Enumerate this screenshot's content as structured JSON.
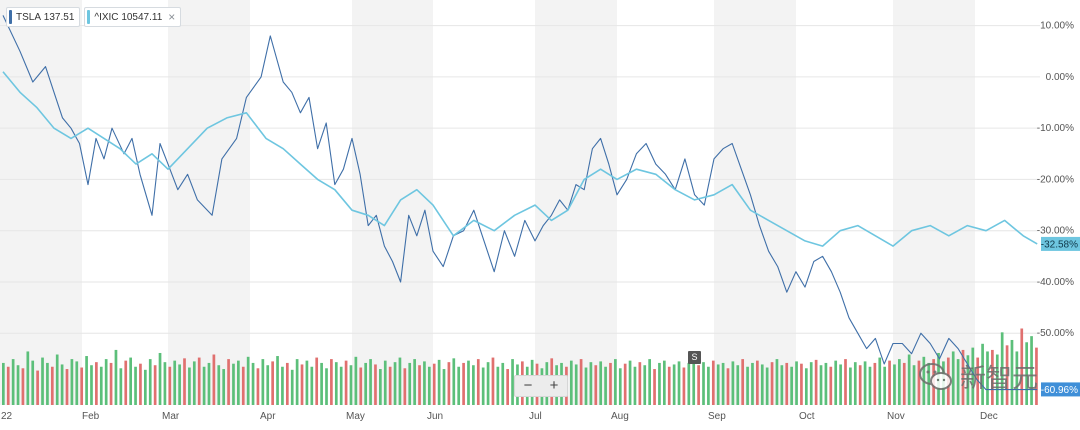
{
  "chart_data": {
    "type": "line",
    "x_labels": [
      "22",
      "Feb",
      "Mar",
      "Apr",
      "May",
      "Jun",
      "Jul",
      "Aug",
      "Sep",
      "Oct",
      "Nov",
      "Dec"
    ],
    "y_ticks": [
      "10.00%",
      "0.00%",
      "-10.00%",
      "-20.00%",
      "-30.00%",
      "-40.00%",
      "-50.00%"
    ],
    "ylim": [
      -64,
      15
    ],
    "grid": true,
    "legend_position": "top-left",
    "series": [
      {
        "name": "TSLA",
        "legend_value": "137.51",
        "color": "#3f6fa8",
        "last_label": "-60.96%",
        "x": [
          0,
          0.2,
          0.35,
          0.5,
          0.6,
          0.7,
          0.8,
          0.9,
          1.0,
          1.1,
          1.2,
          1.3,
          1.45,
          1.55,
          1.65,
          1.8,
          1.9,
          2.0,
          2.1,
          2.2,
          2.3,
          2.45,
          2.55,
          2.7,
          2.8,
          2.95,
          3.05,
          3.2,
          3.3,
          3.4,
          3.5,
          3.6,
          3.7,
          3.8,
          3.9,
          4.0,
          4.1,
          4.2,
          4.3,
          4.4,
          4.5,
          4.6,
          4.7,
          4.8,
          4.9,
          5.0,
          5.1,
          5.2,
          5.3,
          5.4,
          5.5,
          5.6,
          5.7,
          5.8,
          5.9,
          6.0,
          6.1,
          6.2,
          6.3,
          6.4,
          6.5,
          6.6,
          6.7,
          6.8,
          6.9,
          7.0,
          7.1,
          7.2,
          7.3,
          7.4,
          7.5,
          7.6,
          7.7,
          7.8,
          7.9,
          8.0,
          8.1,
          8.2,
          8.3,
          8.4,
          8.5,
          8.6,
          8.7,
          8.8,
          8.9,
          9.0,
          9.1,
          9.2,
          9.3,
          9.4,
          9.5,
          9.6,
          9.7,
          9.8,
          9.9,
          10.0,
          10.1,
          10.2,
          10.3,
          10.4,
          10.5,
          10.6,
          10.7,
          10.8,
          10.9,
          11.0,
          11.1,
          11.2,
          11.3,
          11.4,
          11.55
        ],
        "y": [
          12,
          5,
          -1,
          2,
          -3,
          -8,
          -10,
          -13,
          -21,
          -12,
          -16,
          -10,
          -15,
          -12,
          -19,
          -27,
          -13,
          -17,
          -22,
          -19,
          -24,
          -27,
          -16,
          -12,
          -4,
          0,
          8,
          -1,
          -3,
          -7,
          -4,
          -14,
          -9,
          -21,
          -18,
          -12,
          -19,
          -29,
          -27,
          -33,
          -36,
          -40,
          -27,
          -31,
          -26,
          -34,
          -37,
          -31,
          -30,
          -26,
          -32,
          -38,
          -30,
          -35,
          -28,
          -32,
          -29,
          -27,
          -24,
          -26,
          -21,
          -22,
          -14,
          -12,
          -17,
          -23,
          -20,
          -15,
          -13,
          -17,
          -19,
          -22,
          -16,
          -23,
          -25,
          -16,
          -14,
          -13,
          -18,
          -23,
          -29,
          -34,
          -37,
          -42,
          -38,
          -41,
          -36,
          -35,
          -38,
          -42,
          -47,
          -50,
          -53,
          -51,
          -56,
          -52,
          -52,
          -54,
          -50,
          -52,
          -55,
          -51,
          -53,
          -56,
          -59,
          -61,
          -61,
          -61,
          -61,
          -61,
          -61
        ],
        "y_actual": [
          12,
          5,
          -1,
          2,
          -3,
          -8,
          -10,
          -13,
          -21,
          -12,
          -16,
          -10,
          -15,
          -12,
          -19,
          -27,
          -13,
          -17,
          -22,
          -19,
          -24,
          -27,
          -16,
          -12,
          -4,
          0,
          8,
          -1,
          -3,
          -7,
          -4,
          -14,
          -9,
          -21,
          -18,
          -12,
          -19,
          -29,
          -27,
          -33,
          -36,
          -40,
          -27,
          -31,
          -26,
          -34,
          -37,
          -31,
          -30,
          -26,
          -32,
          -38,
          -30,
          -35,
          -28,
          -32,
          -29,
          -27,
          -24,
          -26,
          -21,
          -22,
          -14,
          -12,
          -17,
          -23,
          -20,
          -15,
          -13,
          -17,
          -19,
          -22,
          -16,
          -23,
          -25,
          -16,
          -14,
          -13,
          -18,
          -23,
          -29,
          -34,
          -37,
          -42,
          -38,
          -41,
          -36,
          -35,
          -38,
          -42,
          -47,
          -50,
          -53,
          -51,
          -56,
          -52,
          -52,
          -54,
          -50,
          -52,
          -55,
          -51,
          -53,
          -56,
          -59,
          -61,
          -61,
          -61,
          -61,
          -61,
          -61
        ]
      },
      {
        "name": "^IXIC",
        "legend_value": "10547.11",
        "color": "#6ec6e0",
        "last_label": "-32.58%",
        "x": [
          0,
          0.2,
          0.4,
          0.6,
          0.8,
          1.0,
          1.2,
          1.4,
          1.6,
          1.8,
          2.0,
          2.2,
          2.4,
          2.6,
          2.8,
          3.0,
          3.2,
          3.4,
          3.6,
          3.8,
          4.0,
          4.2,
          4.4,
          4.6,
          4.8,
          5.0,
          5.2,
          5.4,
          5.6,
          5.8,
          6.0,
          6.2,
          6.4,
          6.6,
          6.8,
          7.0,
          7.2,
          7.4,
          7.6,
          7.8,
          8.0,
          8.2,
          8.4,
          8.6,
          8.8,
          9.0,
          9.2,
          9.4,
          9.6,
          9.8,
          10.0,
          10.2,
          10.4,
          10.6,
          10.8,
          11.0,
          11.2,
          11.4,
          11.55
        ],
        "y": [
          1,
          -3,
          -6,
          -10,
          -12,
          -10,
          -12,
          -14,
          -17,
          -15,
          -18,
          -14,
          -10,
          -8,
          -7,
          -12,
          -14,
          -17,
          -20,
          -22,
          -26,
          -27,
          -29,
          -24,
          -22,
          -25,
          -31,
          -28,
          -30,
          -27,
          -25,
          -28,
          -26,
          -20,
          -18,
          -20,
          -18,
          -19,
          -22,
          -24,
          -23,
          -21,
          -26,
          -28,
          -30,
          -32,
          -33,
          -30,
          -29,
          -31,
          -33,
          -30,
          -29,
          -31,
          -29,
          -30,
          -28,
          -31,
          -32.58
        ]
      }
    ],
    "volume": {
      "up_color": "#5cbf7a",
      "down_color": "#e0706f",
      "values": [
        0.55,
        0.5,
        0.6,
        0.52,
        0.48,
        0.7,
        0.58,
        0.45,
        0.62,
        0.55,
        0.5,
        0.66,
        0.53,
        0.47,
        0.6,
        0.57,
        0.49,
        0.64,
        0.52,
        0.56,
        0.5,
        0.6,
        0.55,
        0.72,
        0.48,
        0.58,
        0.62,
        0.5,
        0.54,
        0.46,
        0.6,
        0.52,
        0.68,
        0.56,
        0.5,
        0.58,
        0.53,
        0.61,
        0.49,
        0.57,
        0.62,
        0.5,
        0.55,
        0.66,
        0.52,
        0.47,
        0.6,
        0.54,
        0.58,
        0.5,
        0.63,
        0.55,
        0.48,
        0.6,
        0.52,
        0.57,
        0.64,
        0.5,
        0.55,
        0.46,
        0.6,
        0.53,
        0.58,
        0.5,
        0.62,
        0.55,
        0.48,
        0.6,
        0.56,
        0.5,
        0.58,
        0.52,
        0.63,
        0.49,
        0.55,
        0.6,
        0.53,
        0.47,
        0.58,
        0.5,
        0.56,
        0.62,
        0.48,
        0.55,
        0.6,
        0.52,
        0.57,
        0.5,
        0.54,
        0.59,
        0.47,
        0.56,
        0.61,
        0.5,
        0.55,
        0.58,
        0.52,
        0.6,
        0.49,
        0.56,
        0.62,
        0.5,
        0.55,
        0.47,
        0.6,
        0.53,
        0.57,
        0.5,
        0.59,
        0.54,
        0.48,
        0.56,
        0.61,
        0.52,
        0.55,
        0.5,
        0.58,
        0.53,
        0.6,
        0.49,
        0.56,
        0.52,
        0.57,
        0.5,
        0.55,
        0.6,
        0.48,
        0.54,
        0.58,
        0.5,
        0.56,
        0.52,
        0.6,
        0.47,
        0.55,
        0.58,
        0.5,
        0.53,
        0.57,
        0.49,
        0.55,
        0.6,
        0.52,
        0.56,
        0.5,
        0.58,
        0.53,
        0.55,
        0.48,
        0.57,
        0.52,
        0.6,
        0.5,
        0.55,
        0.58,
        0.53,
        0.49,
        0.56,
        0.6,
        0.52,
        0.55,
        0.5,
        0.57,
        0.54,
        0.48,
        0.56,
        0.59,
        0.52,
        0.55,
        0.5,
        0.58,
        0.53,
        0.6,
        0.49,
        0.56,
        0.52,
        0.57,
        0.5,
        0.55,
        0.62,
        0.5,
        0.58,
        0.53,
        0.6,
        0.55,
        0.66,
        0.52,
        0.58,
        0.63,
        0.55,
        0.6,
        0.68,
        0.57,
        0.62,
        0.7,
        0.6,
        0.72,
        0.65,
        0.75,
        0.62,
        0.8,
        0.7,
        0.72,
        0.66,
        0.95,
        0.78,
        0.85,
        0.7,
        1.0,
        0.82,
        0.9,
        0.75
      ]
    }
  },
  "legend": [
    {
      "ticker": "TSLA",
      "value": "137.51",
      "color": "#3f6fa8"
    },
    {
      "ticker": "^IXIC",
      "value": "10547.11",
      "color": "#6ec6e0"
    }
  ],
  "legend_close_icon": "×",
  "controls": {
    "zoom_out": "−",
    "zoom_in": "+",
    "split_badge": "S"
  },
  "watermark": {
    "text": "新智元",
    "icon": "wechat-logo"
  }
}
